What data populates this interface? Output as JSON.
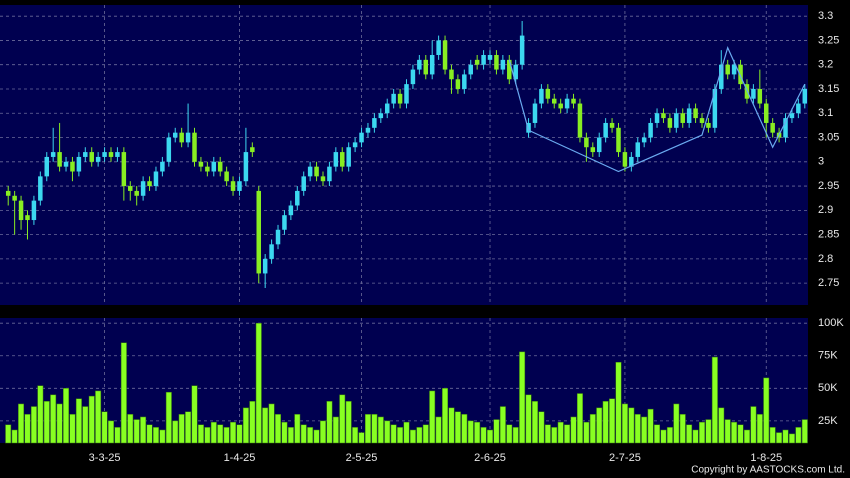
{
  "chart_data": {
    "type": "candlestick",
    "categories": [
      null,
      null,
      null,
      null,
      null,
      null,
      null,
      null,
      null,
      null,
      null,
      null,
      null,
      null,
      null,
      "3-3-25",
      null,
      null,
      null,
      null,
      null,
      null,
      null,
      null,
      null,
      null,
      null,
      null,
      null,
      null,
      null,
      null,
      null,
      null,
      null,
      null,
      "1-4-25",
      null,
      null,
      null,
      null,
      null,
      null,
      null,
      null,
      null,
      null,
      null,
      null,
      null,
      null,
      null,
      null,
      null,
      null,
      "2-5-25",
      null,
      null,
      null,
      null,
      null,
      null,
      null,
      null,
      null,
      null,
      null,
      null,
      null,
      null,
      null,
      null,
      null,
      null,
      null,
      "2-6-25",
      null,
      null,
      null,
      null,
      null,
      null,
      null,
      null,
      null,
      null,
      null,
      null,
      null,
      null,
      null,
      null,
      null,
      null,
      null,
      null,
      "2-7-25",
      null,
      null,
      null,
      null,
      null,
      null,
      null,
      null,
      null,
      null,
      null,
      null,
      null,
      null,
      null,
      null,
      null,
      null,
      null,
      null,
      null,
      "1-8-25",
      null,
      null,
      null,
      null,
      null,
      null
    ],
    "open": [
      2.94,
      2.93,
      2.92,
      2.89,
      2.88,
      2.92,
      2.97,
      3.01,
      3.02,
      2.99,
      3.0,
      2.98,
      3.01,
      3.02,
      3.0,
      3.01,
      3.02,
      3.01,
      3.02,
      2.95,
      2.94,
      2.93,
      2.96,
      2.95,
      2.98,
      3.0,
      3.05,
      3.06,
      3.04,
      3.06,
      3.0,
      2.99,
      2.98,
      3.0,
      2.98,
      2.96,
      2.94,
      2.96,
      3.03,
      2.94,
      2.77,
      2.8,
      2.83,
      2.86,
      2.89,
      2.91,
      2.94,
      2.97,
      2.99,
      2.97,
      2.96,
      2.99,
      3.02,
      2.99,
      3.03,
      3.04,
      3.06,
      3.07,
      3.09,
      3.1,
      3.12,
      3.14,
      3.12,
      3.16,
      3.19,
      3.21,
      3.18,
      3.22,
      3.25,
      3.19,
      3.17,
      3.15,
      3.18,
      3.21,
      3.2,
      3.21,
      3.22,
      3.19,
      3.21,
      3.17,
      3.2,
      3.06,
      3.08,
      3.12,
      3.15,
      3.13,
      3.12,
      3.11,
      3.13,
      3.12,
      3.05,
      3.03,
      3.02,
      3.05,
      3.08,
      3.07,
      3.02,
      2.99,
      3.01,
      3.04,
      3.05,
      3.08,
      3.1,
      3.09,
      3.07,
      3.1,
      3.08,
      3.11,
      3.09,
      3.08,
      3.07,
      3.15,
      3.2,
      3.18,
      3.2,
      3.16,
      3.13,
      3.15,
      3.12,
      3.08,
      3.06,
      3.05,
      3.09,
      3.1,
      3.12
    ],
    "high": [
      2.95,
      2.94,
      2.93,
      2.9,
      2.93,
      2.98,
      3.02,
      3.07,
      3.08,
      3.01,
      3.01,
      3.02,
      3.03,
      3.03,
      3.02,
      3.03,
      3.03,
      3.03,
      3.03,
      2.96,
      2.95,
      2.97,
      2.97,
      2.99,
      3.01,
      3.06,
      3.07,
      3.07,
      3.12,
      3.07,
      3.01,
      3.0,
      3.01,
      3.01,
      2.99,
      2.97,
      2.97,
      3.07,
      3.04,
      2.95,
      2.81,
      2.84,
      2.87,
      2.9,
      2.92,
      2.95,
      2.98,
      3.0,
      3.0,
      2.98,
      3.0,
      3.03,
      3.03,
      3.04,
      3.05,
      3.07,
      3.08,
      3.1,
      3.11,
      3.13,
      3.15,
      3.15,
      3.17,
      3.2,
      3.22,
      3.22,
      3.25,
      3.26,
      3.26,
      3.2,
      3.18,
      3.19,
      3.21,
      3.22,
      3.23,
      3.23,
      3.23,
      3.22,
      3.22,
      3.21,
      3.29,
      3.09,
      3.13,
      3.16,
      3.16,
      3.14,
      3.13,
      3.14,
      3.14,
      3.13,
      3.06,
      3.04,
      3.06,
      3.09,
      3.09,
      3.08,
      3.03,
      3.02,
      3.05,
      3.06,
      3.09,
      3.11,
      3.11,
      3.1,
      3.11,
      3.11,
      3.12,
      3.12,
      3.1,
      3.09,
      3.16,
      3.23,
      3.21,
      3.21,
      3.21,
      3.17,
      3.16,
      3.19,
      3.13,
      3.09,
      3.07,
      3.1,
      3.11,
      3.13,
      3.16
    ],
    "low": [
      2.91,
      2.85,
      2.86,
      2.84,
      2.87,
      2.91,
      2.96,
      3.0,
      2.98,
      2.98,
      2.96,
      2.97,
      3.0,
      2.99,
      2.99,
      3.0,
      3.0,
      3.0,
      2.92,
      2.92,
      2.91,
      2.92,
      2.94,
      2.94,
      2.97,
      2.99,
      3.04,
      3.03,
      3.03,
      2.99,
      2.98,
      2.97,
      2.97,
      2.97,
      2.95,
      2.93,
      2.93,
      2.95,
      3.01,
      2.75,
      2.74,
      2.79,
      2.82,
      2.85,
      2.88,
      2.9,
      2.93,
      2.96,
      2.96,
      2.95,
      2.95,
      2.98,
      2.98,
      2.98,
      3.02,
      3.03,
      3.05,
      3.06,
      3.08,
      3.09,
      3.11,
      3.11,
      3.11,
      3.15,
      3.18,
      3.17,
      3.17,
      3.21,
      3.18,
      3.14,
      3.14,
      3.14,
      3.17,
      3.19,
      3.19,
      3.2,
      3.18,
      3.18,
      3.16,
      3.16,
      3.19,
      3.05,
      3.07,
      3.11,
      3.12,
      3.11,
      3.1,
      3.1,
      3.11,
      3.04,
      3.0,
      3.01,
      3.01,
      3.04,
      3.06,
      3.01,
      2.98,
      2.98,
      3.0,
      3.03,
      3.04,
      3.07,
      3.08,
      3.06,
      3.06,
      3.07,
      3.07,
      3.08,
      3.07,
      3.06,
      3.06,
      3.14,
      3.17,
      3.17,
      3.15,
      3.12,
      3.12,
      3.11,
      3.05,
      3.05,
      3.04,
      3.04,
      3.08,
      3.09,
      3.11
    ],
    "close": [
      2.93,
      2.92,
      2.88,
      2.88,
      2.92,
      2.97,
      3.01,
      3.02,
      2.99,
      3.0,
      2.98,
      3.01,
      3.02,
      3.0,
      3.01,
      3.02,
      3.01,
      3.02,
      2.95,
      2.94,
      2.93,
      2.96,
      2.95,
      2.98,
      3.0,
      3.05,
      3.06,
      3.04,
      3.06,
      3.0,
      2.99,
      2.98,
      3.0,
      2.98,
      2.96,
      2.94,
      2.96,
      3.02,
      3.02,
      2.77,
      2.8,
      2.83,
      2.86,
      2.89,
      2.91,
      2.94,
      2.97,
      2.99,
      2.97,
      2.96,
      2.99,
      3.02,
      2.99,
      3.03,
      3.04,
      3.06,
      3.07,
      3.09,
      3.1,
      3.12,
      3.14,
      3.12,
      3.16,
      3.19,
      3.21,
      3.18,
      3.22,
      3.25,
      3.19,
      3.17,
      3.15,
      3.18,
      3.2,
      3.2,
      3.22,
      3.22,
      3.19,
      3.21,
      3.17,
      3.2,
      3.26,
      3.08,
      3.12,
      3.15,
      3.13,
      3.12,
      3.11,
      3.13,
      3.12,
      3.05,
      3.03,
      3.02,
      3.05,
      3.08,
      3.07,
      3.02,
      2.99,
      3.01,
      3.04,
      3.05,
      3.08,
      3.1,
      3.09,
      3.07,
      3.1,
      3.08,
      3.11,
      3.09,
      3.08,
      3.07,
      3.15,
      3.2,
      3.18,
      3.2,
      3.16,
      3.13,
      3.15,
      3.12,
      3.08,
      3.06,
      3.05,
      3.09,
      3.1,
      3.12,
      3.15
    ],
    "up_color": "#3cd8f0",
    "down_color": "#88ee22",
    "ylim": [
      2.705,
      3.323
    ],
    "yticks": [
      2.75,
      2.8,
      2.85,
      2.9,
      2.95,
      3,
      3.05,
      3.1,
      3.15,
      3.2,
      3.25,
      3.3
    ],
    "grid": true,
    "pattern_line": {
      "x": [
        78,
        81,
        95,
        108,
        112,
        119,
        124
      ],
      "values": [
        3.21,
        3.065,
        2.98,
        3.055,
        3.235,
        3.03,
        3.16
      ],
      "color": "#6aaaf0"
    },
    "volume": {
      "values": [
        22000,
        18000,
        38000,
        30000,
        36000,
        52000,
        40000,
        45000,
        38000,
        50000,
        30000,
        42000,
        36000,
        44000,
        48000,
        32000,
        25000,
        20000,
        85000,
        30000,
        26000,
        28000,
        22000,
        20000,
        18000,
        47000,
        25000,
        30000,
        32000,
        52000,
        22000,
        20000,
        24000,
        22000,
        20000,
        24000,
        22000,
        35000,
        40000,
        100000,
        35000,
        38000,
        30000,
        24000,
        20000,
        30000,
        22000,
        20000,
        18000,
        25000,
        40000,
        28000,
        45000,
        40000,
        20000,
        16000,
        30000,
        30000,
        28000,
        25000,
        22000,
        20000,
        24000,
        18000,
        20000,
        22000,
        48000,
        28000,
        50000,
        35000,
        32000,
        30000,
        25000,
        24000,
        20000,
        18000,
        26000,
        36000,
        22000,
        20000,
        78000,
        45000,
        40000,
        32000,
        22000,
        20000,
        24000,
        22000,
        28000,
        46000,
        24000,
        30000,
        35000,
        40000,
        42000,
        70000,
        38000,
        35000,
        30000,
        28000,
        34000,
        22000,
        18000,
        20000,
        38000,
        30000,
        22000,
        18000,
        24000,
        26000,
        74000,
        35000,
        26000,
        24000,
        22000,
        18000,
        36000,
        30000,
        58000,
        20000,
        16000,
        18000,
        15000,
        20000,
        26000
      ],
      "color": "#88ff22",
      "ylim": [
        8000,
        104000
      ],
      "yticks": [
        {
          "value": 25000,
          "label": "25K"
        },
        {
          "value": 50000,
          "label": "50K"
        },
        {
          "value": 75000,
          "label": "75K"
        },
        {
          "value": 100000,
          "label": "100K"
        }
      ]
    },
    "footer": "Copyright by AASTOCKS.com Ltd."
  }
}
